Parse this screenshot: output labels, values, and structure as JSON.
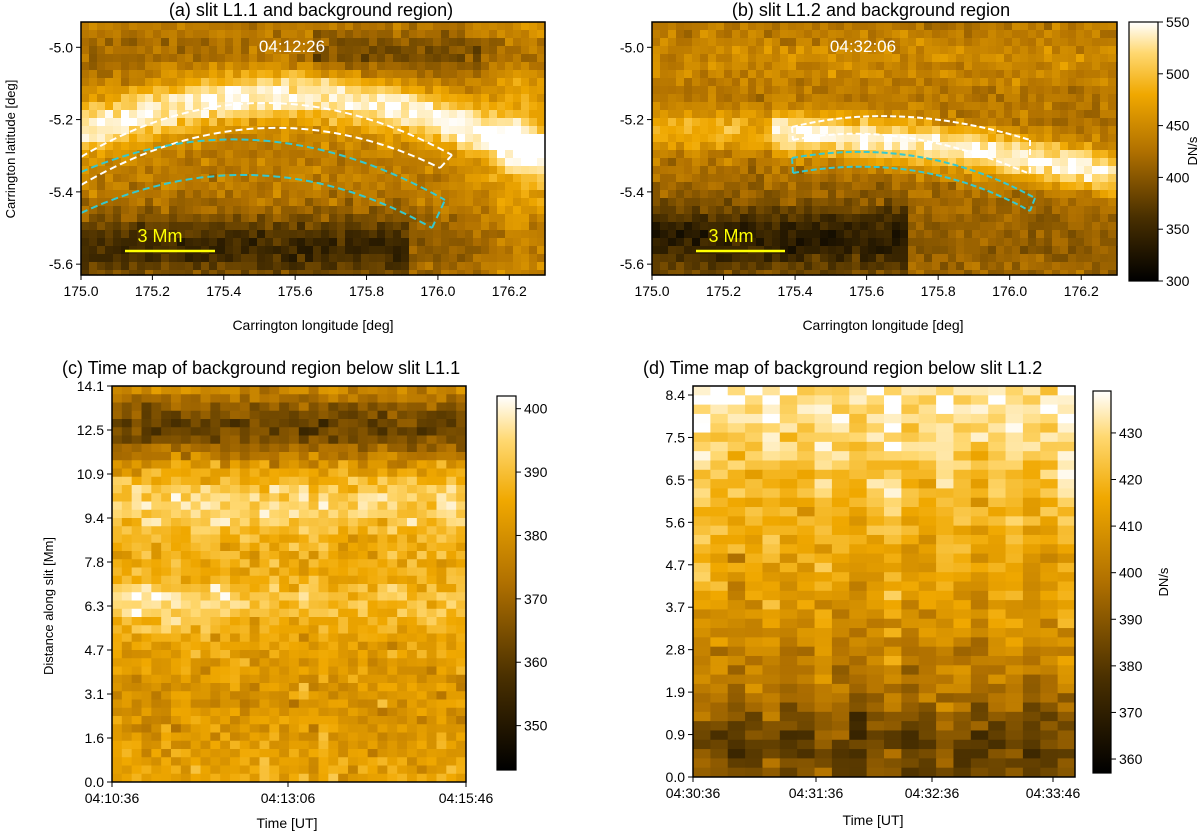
{
  "chart_data": [
    {
      "type": "heatmap",
      "title": "(a) slit L1.1 and background region)",
      "timestamp": "04:12:26",
      "xlabel": "Carrington longitude [deg]",
      "ylabel": "Carrington latitude [deg]",
      "xlim": [
        175.0,
        176.3
      ],
      "ylim": [
        -5.63,
        -4.93
      ],
      "xticks": [
        "175.0",
        "175.2",
        "175.4",
        "175.6",
        "175.8",
        "176.0",
        "176.2"
      ],
      "yticks": [
        "-5.0",
        "-5.2",
        "-5.4",
        "-5.6"
      ],
      "scale_bar_label": "3 Mm",
      "colorscale": "sdoaia171-like (black to orange to white)",
      "slit_color": "#ffffff",
      "background_region_color": "#36c8cf"
    },
    {
      "type": "heatmap",
      "title": "(b) slit L1.2 and background region",
      "timestamp": "04:32:06",
      "xlabel": "Carrington longitude [deg]",
      "ylabel": "",
      "xlim": [
        175.0,
        176.3
      ],
      "ylim": [
        -5.63,
        -4.93
      ],
      "xticks": [
        "175.0",
        "175.2",
        "175.4",
        "175.6",
        "175.8",
        "176.0",
        "176.2"
      ],
      "yticks": [
        "-5.0",
        "-5.2",
        "-5.4",
        "-5.6"
      ],
      "scale_bar_label": "3 Mm",
      "colorbar": {
        "label": "DN/s",
        "range": [
          300,
          550
        ],
        "ticks": [
          "300",
          "350",
          "400",
          "450",
          "500",
          "550"
        ]
      },
      "slit_color": "#ffffff",
      "background_region_color": "#36c8cf"
    },
    {
      "type": "heatmap",
      "title": "(c) Time map of background region below slit L1.1",
      "xlabel": "Time [UT]",
      "ylabel": "Distance along slit [Mm]",
      "xticks": [
        "04:10:36",
        "04:13:06",
        "04:15:46"
      ],
      "yticks": [
        "0.0",
        "1.6",
        "3.1",
        "4.7",
        "6.3",
        "7.8",
        "9.4",
        "10.9",
        "12.5",
        "14.1"
      ],
      "colorbar": {
        "label": "",
        "range": [
          343,
          402
        ],
        "ticks": [
          "350",
          "360",
          "370",
          "380",
          "390",
          "400"
        ]
      }
    },
    {
      "type": "heatmap",
      "title": "(d) Time map of background region below slit L1.2",
      "xlabel": "Time [UT]",
      "ylabel": "",
      "xticks": [
        "04:30:36",
        "04:31:36",
        "04:32:36",
        "04:33:46"
      ],
      "yticks": [
        "0.0",
        "0.9",
        "1.9",
        "2.8",
        "3.7",
        "4.7",
        "5.6",
        "6.5",
        "7.5",
        "8.4"
      ],
      "colorbar": {
        "label": "DN/s",
        "range": [
          357,
          439
        ],
        "ticks": [
          "360",
          "370",
          "380",
          "390",
          "400",
          "410",
          "420",
          "430"
        ]
      }
    }
  ]
}
